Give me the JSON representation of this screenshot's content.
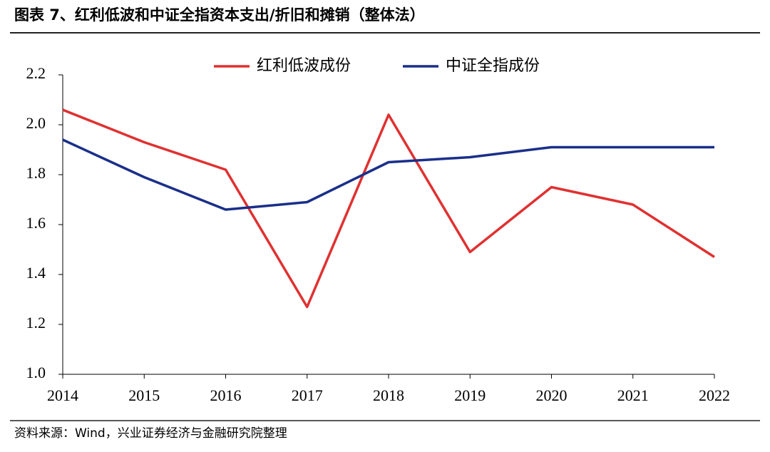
{
  "chart_data": {
    "type": "line",
    "title": "图表 7、红利低波和中证全指资本支出/折旧和摊销（整体法）",
    "source": "资料来源：Wind，兴业证券经济与金融研究院整理",
    "categories": [
      "2014",
      "2015",
      "2016",
      "2017",
      "2018",
      "2019",
      "2020",
      "2021",
      "2022"
    ],
    "series": [
      {
        "name": "红利低波成份",
        "color": "#e03131",
        "values": [
          2.06,
          1.93,
          1.82,
          1.27,
          2.04,
          1.49,
          1.75,
          1.68,
          1.47
        ]
      },
      {
        "name": "中证全指成份",
        "color": "#1a2f8a",
        "values": [
          1.94,
          1.79,
          1.66,
          1.69,
          1.85,
          1.87,
          1.91,
          1.91,
          1.91
        ]
      }
    ],
    "ylim": [
      1,
      2.2
    ],
    "yticks": [
      {
        "value": 1,
        "label": "1.0"
      },
      1.2,
      1.4,
      1.6,
      1.8,
      {
        "value": 2,
        "label": "2.0"
      },
      2.2
    ],
    "legend": "top"
  }
}
